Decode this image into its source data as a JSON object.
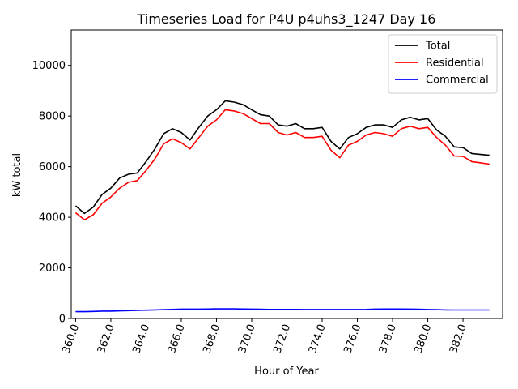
{
  "chart_data": {
    "type": "line",
    "title": "Timeseries Load for P4U p4uhs3_1247  Day 16",
    "xlabel": "Hour of Year",
    "ylabel": "kW total",
    "xlim": [
      359.75,
      384.25
    ],
    "ylim": [
      0,
      11400
    ],
    "x_ticks": [
      360,
      362,
      364,
      366,
      368,
      370,
      372,
      374,
      376,
      378,
      380,
      382
    ],
    "x_tick_labels": [
      "360.0",
      "362.0",
      "364.0",
      "366.0",
      "368.0",
      "370.0",
      "372.0",
      "374.0",
      "376.0",
      "378.0",
      "380.0",
      "382.0"
    ],
    "y_ticks": [
      0,
      2000,
      4000,
      6000,
      8000,
      10000
    ],
    "y_tick_labels": [
      "0",
      "2000",
      "4000",
      "6000",
      "8000",
      "10000"
    ],
    "legend_position": "top-right",
    "x": [
      360.0,
      360.5,
      361.0,
      361.5,
      362.0,
      362.5,
      363.0,
      363.5,
      364.0,
      364.5,
      365.0,
      365.5,
      366.0,
      366.5,
      367.0,
      367.5,
      368.0,
      368.5,
      369.0,
      369.5,
      370.0,
      370.5,
      371.0,
      371.5,
      372.0,
      372.5,
      373.0,
      373.5,
      374.0,
      374.5,
      375.0,
      375.5,
      376.0,
      376.5,
      377.0,
      377.5,
      378.0,
      378.5,
      379.0,
      379.5,
      380.0,
      380.5,
      381.0,
      381.5,
      382.0,
      382.5,
      383.0,
      383.5
    ],
    "series": [
      {
        "name": "Total",
        "color": "#000000",
        "values": [
          4450,
          4150,
          4400,
          4900,
          5150,
          5550,
          5700,
          5750,
          6200,
          6700,
          7300,
          7500,
          7350,
          7050,
          7550,
          8000,
          8250,
          8600,
          8550,
          8450,
          8250,
          8050,
          8000,
          7650,
          7600,
          7700,
          7500,
          7500,
          7550,
          7000,
          6700,
          7150,
          7300,
          7550,
          7650,
          7650,
          7550,
          7850,
          7950,
          7850,
          7900,
          7450,
          7200,
          6780,
          6750,
          6520,
          6480,
          6450
        ]
      },
      {
        "name": "Residential",
        "color": "#ff0000",
        "values": [
          4180,
          3900,
          4100,
          4550,
          4800,
          5150,
          5380,
          5450,
          5850,
          6300,
          6900,
          7100,
          6950,
          6700,
          7150,
          7600,
          7850,
          8250,
          8200,
          8100,
          7900,
          7700,
          7700,
          7350,
          7250,
          7350,
          7150,
          7150,
          7200,
          6650,
          6350,
          6850,
          7000,
          7250,
          7350,
          7300,
          7200,
          7500,
          7600,
          7500,
          7550,
          7150,
          6850,
          6420,
          6400,
          6200,
          6150,
          6100
        ]
      },
      {
        "name": "Commercial",
        "color": "#0000ff",
        "values": [
          270,
          270,
          280,
          290,
          290,
          300,
          310,
          320,
          330,
          340,
          350,
          360,
          370,
          370,
          370,
          375,
          380,
          380,
          380,
          375,
          370,
          365,
          360,
          360,
          360,
          360,
          355,
          355,
          355,
          355,
          355,
          355,
          355,
          360,
          370,
          375,
          375,
          375,
          370,
          365,
          355,
          350,
          340,
          335,
          335,
          335,
          335,
          335
        ]
      }
    ]
  }
}
